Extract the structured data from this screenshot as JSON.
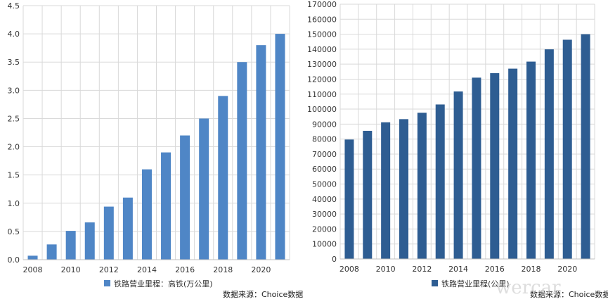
{
  "chart_data": [
    {
      "type": "bar",
      "categories": [
        "2008",
        "2009",
        "2010",
        "2011",
        "2012",
        "2013",
        "2014",
        "2015",
        "2016",
        "2017",
        "2018",
        "2019",
        "2020",
        "2021"
      ],
      "x_tick_labels": [
        "2008",
        "2010",
        "2012",
        "2014",
        "2016",
        "2018",
        "2020"
      ],
      "series": [
        {
          "name": "铁路营业里程：高铁(万公里)",
          "values": [
            0.07,
            0.27,
            0.51,
            0.66,
            0.94,
            1.1,
            1.6,
            1.9,
            2.2,
            2.5,
            2.9,
            3.5,
            3.8,
            4.0
          ]
        }
      ],
      "ylim": [
        0,
        4.5
      ],
      "y_ticks": [
        "0.0",
        "0.5",
        "1.0",
        "1.5",
        "2.0",
        "2.5",
        "3.0",
        "3.5",
        "4.0",
        "4.5"
      ],
      "grid": true,
      "legend_position": "bottom-center",
      "source": "数据来源：Choice数据",
      "color": "#4f86c6"
    },
    {
      "type": "bar",
      "categories": [
        "2008",
        "2009",
        "2010",
        "2011",
        "2012",
        "2013",
        "2014",
        "2015",
        "2016",
        "2017",
        "2018",
        "2019",
        "2020",
        "2021"
      ],
      "x_tick_labels": [
        "2008",
        "2010",
        "2012",
        "2014",
        "2016",
        "2018",
        "2020"
      ],
      "series": [
        {
          "name": "铁路营业里程(公里)",
          "values": [
            79700,
            85500,
            91200,
            93300,
            97600,
            103100,
            111800,
            121000,
            124000,
            127000,
            131700,
            139900,
            146300,
            150000
          ]
        }
      ],
      "ylim": [
        0,
        170000
      ],
      "y_ticks": [
        "0",
        "10000",
        "20000",
        "30000",
        "40000",
        "50000",
        "60000",
        "70000",
        "80000",
        "90000",
        "100000",
        "110000",
        "120000",
        "130000",
        "140000",
        "150000",
        "160000",
        "170000"
      ],
      "grid": true,
      "legend_position": "bottom-center",
      "source": "数据来源：Choice数据",
      "color": "#2e5d92"
    }
  ],
  "watermark": "wercar"
}
